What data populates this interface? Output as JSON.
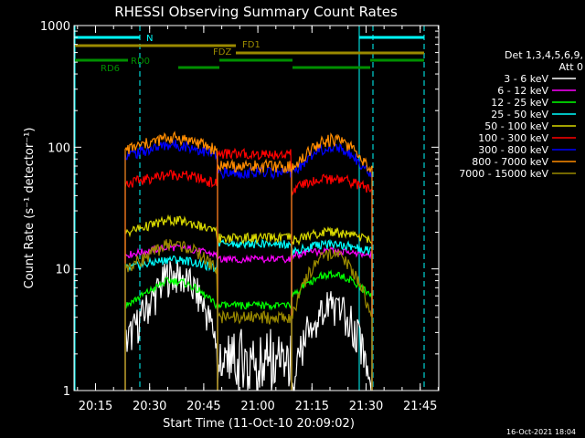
{
  "chart_data": {
    "type": "line",
    "title": "RHESSI Observing Summary Count Rates",
    "xlabel": "Start Time (11-Oct-10 20:09:02)",
    "ylabel": "Count Rate (s⁻¹ detector⁻¹)",
    "x_ticks": [
      "20:15",
      "20:30",
      "20:45",
      "21:00",
      "21:15",
      "21:30",
      "21:45"
    ],
    "y_ticks": [
      "1",
      "10",
      "100",
      "1000"
    ],
    "ylim": [
      1,
      1000
    ],
    "y_scale": "log",
    "grid": false,
    "legend_header": [
      "Det 1,3,4,5,6,9,",
      "Att 0"
    ],
    "footer": "16-Oct-2021 18:04",
    "flags": [
      {
        "name": "N",
        "color": "#00ffff"
      },
      {
        "name": "FD1",
        "color": "#9b8a00"
      },
      {
        "name": "FDZ",
        "color": "#9b8a00"
      },
      {
        "name": "RD0",
        "color": "#008f00"
      },
      {
        "name": "RD6",
        "color": "#008f00"
      }
    ],
    "series": [
      {
        "name": "3 - 6 keV",
        "color": "#ffffff",
        "values": [
          2.5,
          9,
          1,
          5,
          1
        ],
        "peak_window": [
          20.4,
          20.8
        ]
      },
      {
        "name": "6 - 12 keV",
        "color": "#ff00ff",
        "values": [
          13,
          15,
          12,
          14,
          13
        ]
      },
      {
        "name": "12 - 25 keV",
        "color": "#00ff00",
        "values": [
          5,
          8,
          5,
          9,
          6
        ]
      },
      {
        "name": "25 - 50 keV",
        "color": "#00ffff",
        "values": [
          10,
          12,
          16,
          16,
          14
        ]
      },
      {
        "name": "50 - 100 keV",
        "color": "#d8d800",
        "values": [
          20,
          25,
          18,
          20,
          17
        ]
      },
      {
        "name": "100 - 300 keV",
        "color": "#ff0000",
        "values": [
          50,
          60,
          88,
          55,
          45
        ]
      },
      {
        "name": "300 - 800 keV",
        "color": "#0000ff",
        "values": [
          85,
          105,
          62,
          100,
          60
        ]
      },
      {
        "name": "800 - 7000 keV",
        "color": "#ff8c00",
        "values": [
          95,
          120,
          70,
          115,
          65
        ]
      },
      {
        "name": "7000 - 15000 keV",
        "color": "#9b8a00",
        "values": [
          10,
          16,
          4,
          13,
          4
        ]
      }
    ]
  }
}
